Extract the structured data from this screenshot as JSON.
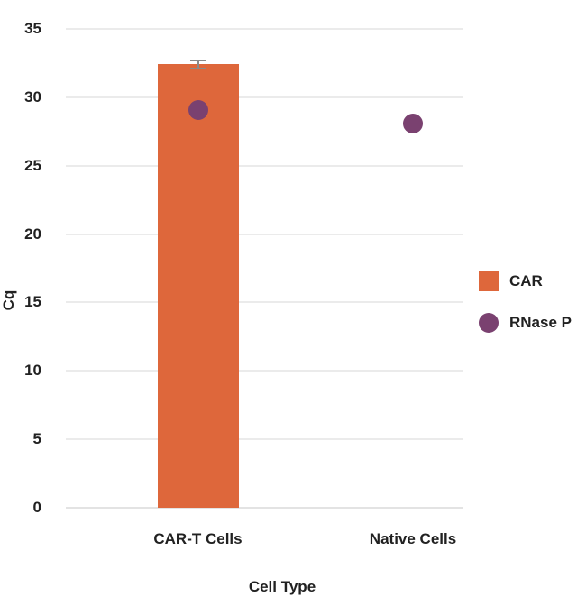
{
  "chart": {
    "background": "#FFFFFF",
    "text_color": "#212121",
    "grid_color": "#EBEBEB",
    "axis_line_color": "#E3E3E3",
    "error_bar_color": "#8A8A8A"
  },
  "chart_data": {
    "type": "bar",
    "title": "",
    "xlabel": "Cell Type",
    "ylabel": "Cq",
    "categories": [
      "CAR-T Cells",
      "Native Cells"
    ],
    "series": [
      {
        "name": "CAR",
        "type": "bar",
        "color": "#DE673B",
        "values": [
          32.4,
          null
        ],
        "errors": [
          0.3,
          null
        ]
      },
      {
        "name": "RNase P",
        "type": "point",
        "color": "#7A4170",
        "values": [
          29.1,
          28.1
        ]
      }
    ],
    "ylim": [
      0,
      35
    ],
    "yticks": [
      0,
      5,
      10,
      15,
      20,
      25,
      30,
      35
    ],
    "grid": true,
    "legend_position": "right",
    "legend": [
      {
        "label": "CAR",
        "swatch": "square",
        "color": "#DE673B"
      },
      {
        "label": "RNase P",
        "swatch": "circle",
        "color": "#7A4170"
      }
    ]
  }
}
